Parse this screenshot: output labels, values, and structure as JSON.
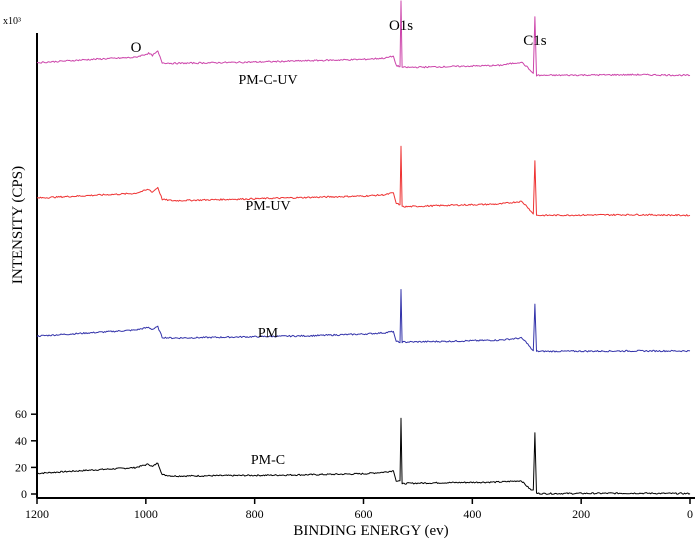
{
  "chart_data": {
    "type": "line",
    "title": "",
    "xlabel": "BINDING ENERGY (ev)",
    "ylabel": "INTENSITY (CPS)",
    "y_multiplier": "x10³",
    "xlim": [
      1200,
      0
    ],
    "x_reversed": true,
    "x_ticks": [
      "1200",
      "1000",
      "800",
      "600",
      "400",
      "200",
      "0"
    ],
    "ylim": [
      0,
      60
    ],
    "y_ticks": [
      "0",
      "20",
      "40",
      "60"
    ],
    "grid": false,
    "legend": "none",
    "annotations": [
      {
        "text": "O",
        "x": 985
      },
      {
        "text": "O1s",
        "x": 531
      },
      {
        "text": "C1s",
        "x": 285
      }
    ],
    "series": [
      {
        "name": "PM-C",
        "color": "#000000",
        "offset_y": 0,
        "points": [
          [
            1200,
            15.5
          ],
          [
            1100,
            18
          ],
          [
            1020,
            19.8
          ],
          [
            995,
            22.5
          ],
          [
            988,
            20.5
          ],
          [
            978,
            23.5
          ],
          [
            970,
            14.5
          ],
          [
            950,
            13.5
          ],
          [
            800,
            14
          ],
          [
            700,
            14.5
          ],
          [
            600,
            15.2
          ],
          [
            560,
            16.5
          ],
          [
            545,
            17.5
          ],
          [
            540,
            10
          ],
          [
            533,
            10
          ],
          [
            531,
            57
          ],
          [
            529,
            7.5
          ],
          [
            520,
            8
          ],
          [
            450,
            8.5
          ],
          [
            350,
            9
          ],
          [
            310,
            10
          ],
          [
            300,
            6
          ],
          [
            292,
            3
          ],
          [
            288,
            3
          ],
          [
            285,
            46
          ],
          [
            282,
            0.5
          ],
          [
            270,
            0.3
          ],
          [
            100,
            0.6
          ],
          [
            0,
            0.3
          ]
        ]
      },
      {
        "name": "PM",
        "color": "#3333aa",
        "offset_y": 1,
        "points": [
          [
            1200,
            15
          ],
          [
            1100,
            17.5
          ],
          [
            1020,
            19.5
          ],
          [
            995,
            21.5
          ],
          [
            988,
            20
          ],
          [
            978,
            22
          ],
          [
            970,
            14
          ],
          [
            950,
            13.5
          ],
          [
            800,
            14.5
          ],
          [
            700,
            15.2
          ],
          [
            600,
            16.5
          ],
          [
            560,
            17.5
          ],
          [
            545,
            18.5
          ],
          [
            540,
            11
          ],
          [
            533,
            10
          ],
          [
            531,
            50
          ],
          [
            529,
            10.5
          ],
          [
            520,
            10.5
          ],
          [
            450,
            11
          ],
          [
            350,
            12
          ],
          [
            310,
            13.5
          ],
          [
            300,
            10
          ],
          [
            292,
            5.5
          ],
          [
            288,
            4
          ],
          [
            285,
            39
          ],
          [
            282,
            3.5
          ],
          [
            270,
            3.5
          ],
          [
            100,
            3.8
          ],
          [
            0,
            3.8
          ]
        ]
      },
      {
        "name": "PM-UV",
        "color": "#ee3333",
        "offset_y": 2,
        "points": [
          [
            1200,
            15
          ],
          [
            1100,
            17
          ],
          [
            1020,
            18.5
          ],
          [
            995,
            21.5
          ],
          [
            988,
            19.5
          ],
          [
            978,
            23
          ],
          [
            970,
            14
          ],
          [
            950,
            13
          ],
          [
            800,
            14.5
          ],
          [
            700,
            15.5
          ],
          [
            600,
            16.5
          ],
          [
            560,
            17.5
          ],
          [
            545,
            19
          ],
          [
            540,
            11
          ],
          [
            533,
            10
          ],
          [
            531,
            54
          ],
          [
            529,
            8.5
          ],
          [
            520,
            8.5
          ],
          [
            450,
            9.5
          ],
          [
            350,
            10.5
          ],
          [
            310,
            12.5
          ],
          [
            300,
            9
          ],
          [
            292,
            5
          ],
          [
            288,
            3
          ],
          [
            285,
            43
          ],
          [
            282,
            2
          ],
          [
            270,
            2
          ],
          [
            100,
            2.5
          ],
          [
            0,
            2
          ]
        ]
      },
      {
        "name": "PM-C-UV",
        "color": "#cc44aa",
        "offset_y": 3,
        "points": [
          [
            1200,
            13
          ],
          [
            1100,
            15.5
          ],
          [
            1020,
            17
          ],
          [
            995,
            20
          ],
          [
            988,
            18.5
          ],
          [
            978,
            21.5
          ],
          [
            970,
            13
          ],
          [
            950,
            12.5
          ],
          [
            800,
            13.5
          ],
          [
            700,
            14.5
          ],
          [
            600,
            15.5
          ],
          [
            560,
            16.5
          ],
          [
            545,
            18
          ],
          [
            540,
            11
          ],
          [
            533,
            10
          ],
          [
            531,
            59.5
          ],
          [
            529,
            9.5
          ],
          [
            520,
            9.5
          ],
          [
            450,
            10
          ],
          [
            350,
            11
          ],
          [
            310,
            13.5
          ],
          [
            300,
            10
          ],
          [
            292,
            6.5
          ],
          [
            288,
            5
          ],
          [
            285,
            47.5
          ],
          [
            282,
            3.5
          ],
          [
            270,
            3.5
          ],
          [
            100,
            4
          ],
          [
            0,
            3.5
          ]
        ]
      }
    ]
  }
}
